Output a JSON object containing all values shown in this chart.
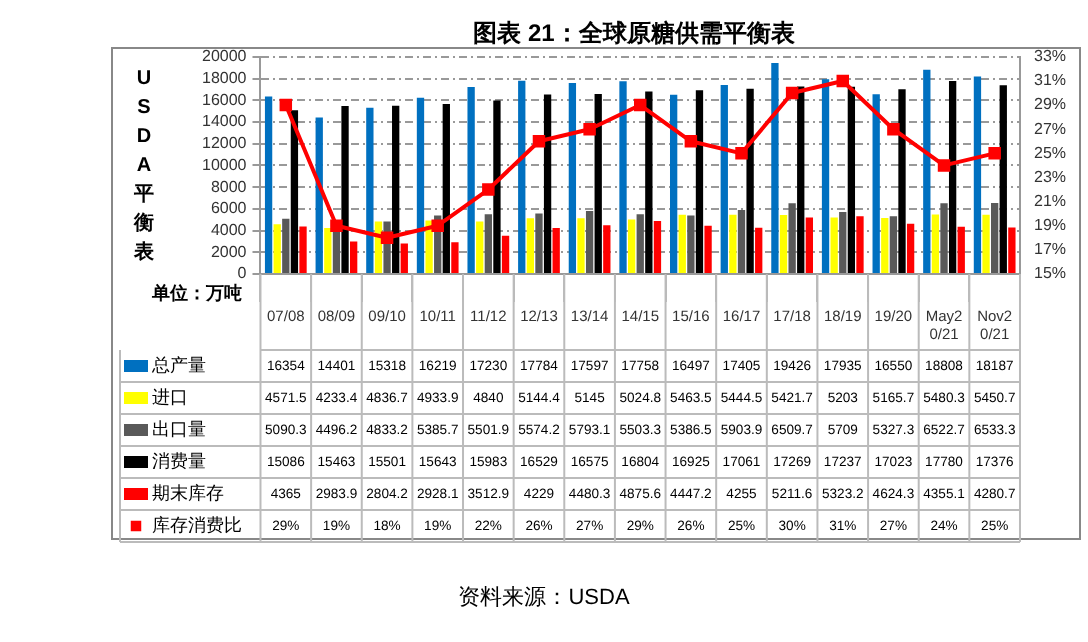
{
  "chart_data": {
    "type": "bar",
    "title": "图表 21：全球原糖供需平衡表",
    "ylabel": "USDA平衡表",
    "categories": [
      "07/08",
      "08/09",
      "09/10",
      "10/11",
      "11/12",
      "12/13",
      "13/14",
      "14/15",
      "15/16",
      "16/17",
      "17/18",
      "18/19",
      "19/20",
      "May20/21",
      "Nov20/21"
    ],
    "series": [
      {
        "name": "总产量",
        "color": "#0070c0",
        "values": [
          16354,
          14401,
          15318,
          16219,
          17230,
          17784,
          17597,
          17758,
          16497,
          17405,
          19426,
          17935,
          16550,
          18808,
          18187
        ]
      },
      {
        "name": "进口",
        "color": "#ffff00",
        "values": [
          4571.5,
          4233.4,
          4836.7,
          4933.9,
          4840,
          5144.4,
          5145,
          5024.8,
          5463.5,
          5444.5,
          5421.7,
          5203,
          5165.7,
          5480.3,
          5450.7
        ]
      },
      {
        "name": "出口量",
        "color": "#595959",
        "values": [
          5090.3,
          4496.2,
          4833.2,
          5385.7,
          5501.9,
          5574.2,
          5793.1,
          5503.3,
          5386.5,
          5903.9,
          6509.7,
          5709,
          5327.3,
          6522.7,
          6533.3
        ]
      },
      {
        "name": "消费量",
        "color": "#000000",
        "values": [
          15086,
          15463,
          15501,
          15643,
          15983,
          16529,
          16575,
          16804,
          16925,
          17061,
          17269,
          17237,
          17023,
          17780,
          17376
        ]
      },
      {
        "name": "期末库存",
        "color": "#ff0000",
        "values": [
          4365,
          2983.9,
          2804.2,
          2928.1,
          3512.9,
          4229,
          4480.3,
          4875.6,
          4447.2,
          4255,
          5211.6,
          5323.2,
          4624.3,
          4355.1,
          4280.7
        ]
      },
      {
        "name": "库存消费比",
        "type": "line",
        "axis": "y2",
        "color": "#ff0000",
        "marker": "square",
        "line_style": "solid",
        "values": [
          29,
          19,
          18,
          19,
          22,
          26,
          27,
          29,
          26,
          25,
          30,
          31,
          27,
          24,
          25
        ],
        "value_labels": [
          "29%",
          "19%",
          "18%",
          "19%",
          "22%",
          "26%",
          "27%",
          "29%",
          "26%",
          "25%",
          "30%",
          "31%",
          "27%",
          "24%",
          "25%"
        ]
      }
    ],
    "ylim": [
      0,
      20000
    ],
    "yticks": [
      0,
      2000,
      4000,
      6000,
      8000,
      10000,
      12000,
      14000,
      16000,
      18000,
      20000
    ],
    "y2lim": [
      15,
      33
    ],
    "y2ticks": [
      {
        "value": 15,
        "label": "15%"
      },
      {
        "value": 17,
        "label": "17%"
      },
      {
        "value": 19,
        "label": "19%"
      },
      {
        "value": 21,
        "label": "21%"
      },
      {
        "value": 23,
        "label": "23%"
      },
      {
        "value": 25,
        "label": "25%"
      },
      {
        "value": 27,
        "label": "27%"
      },
      {
        "value": 29,
        "label": "29%"
      },
      {
        "value": 31,
        "label": "31%"
      },
      {
        "value": 33,
        "label": "33%"
      }
    ],
    "grid": "y",
    "legend": "bottom",
    "data_labels": true,
    "annotations": [
      "单位：万吨",
      "资料来源：USDA"
    ]
  }
}
